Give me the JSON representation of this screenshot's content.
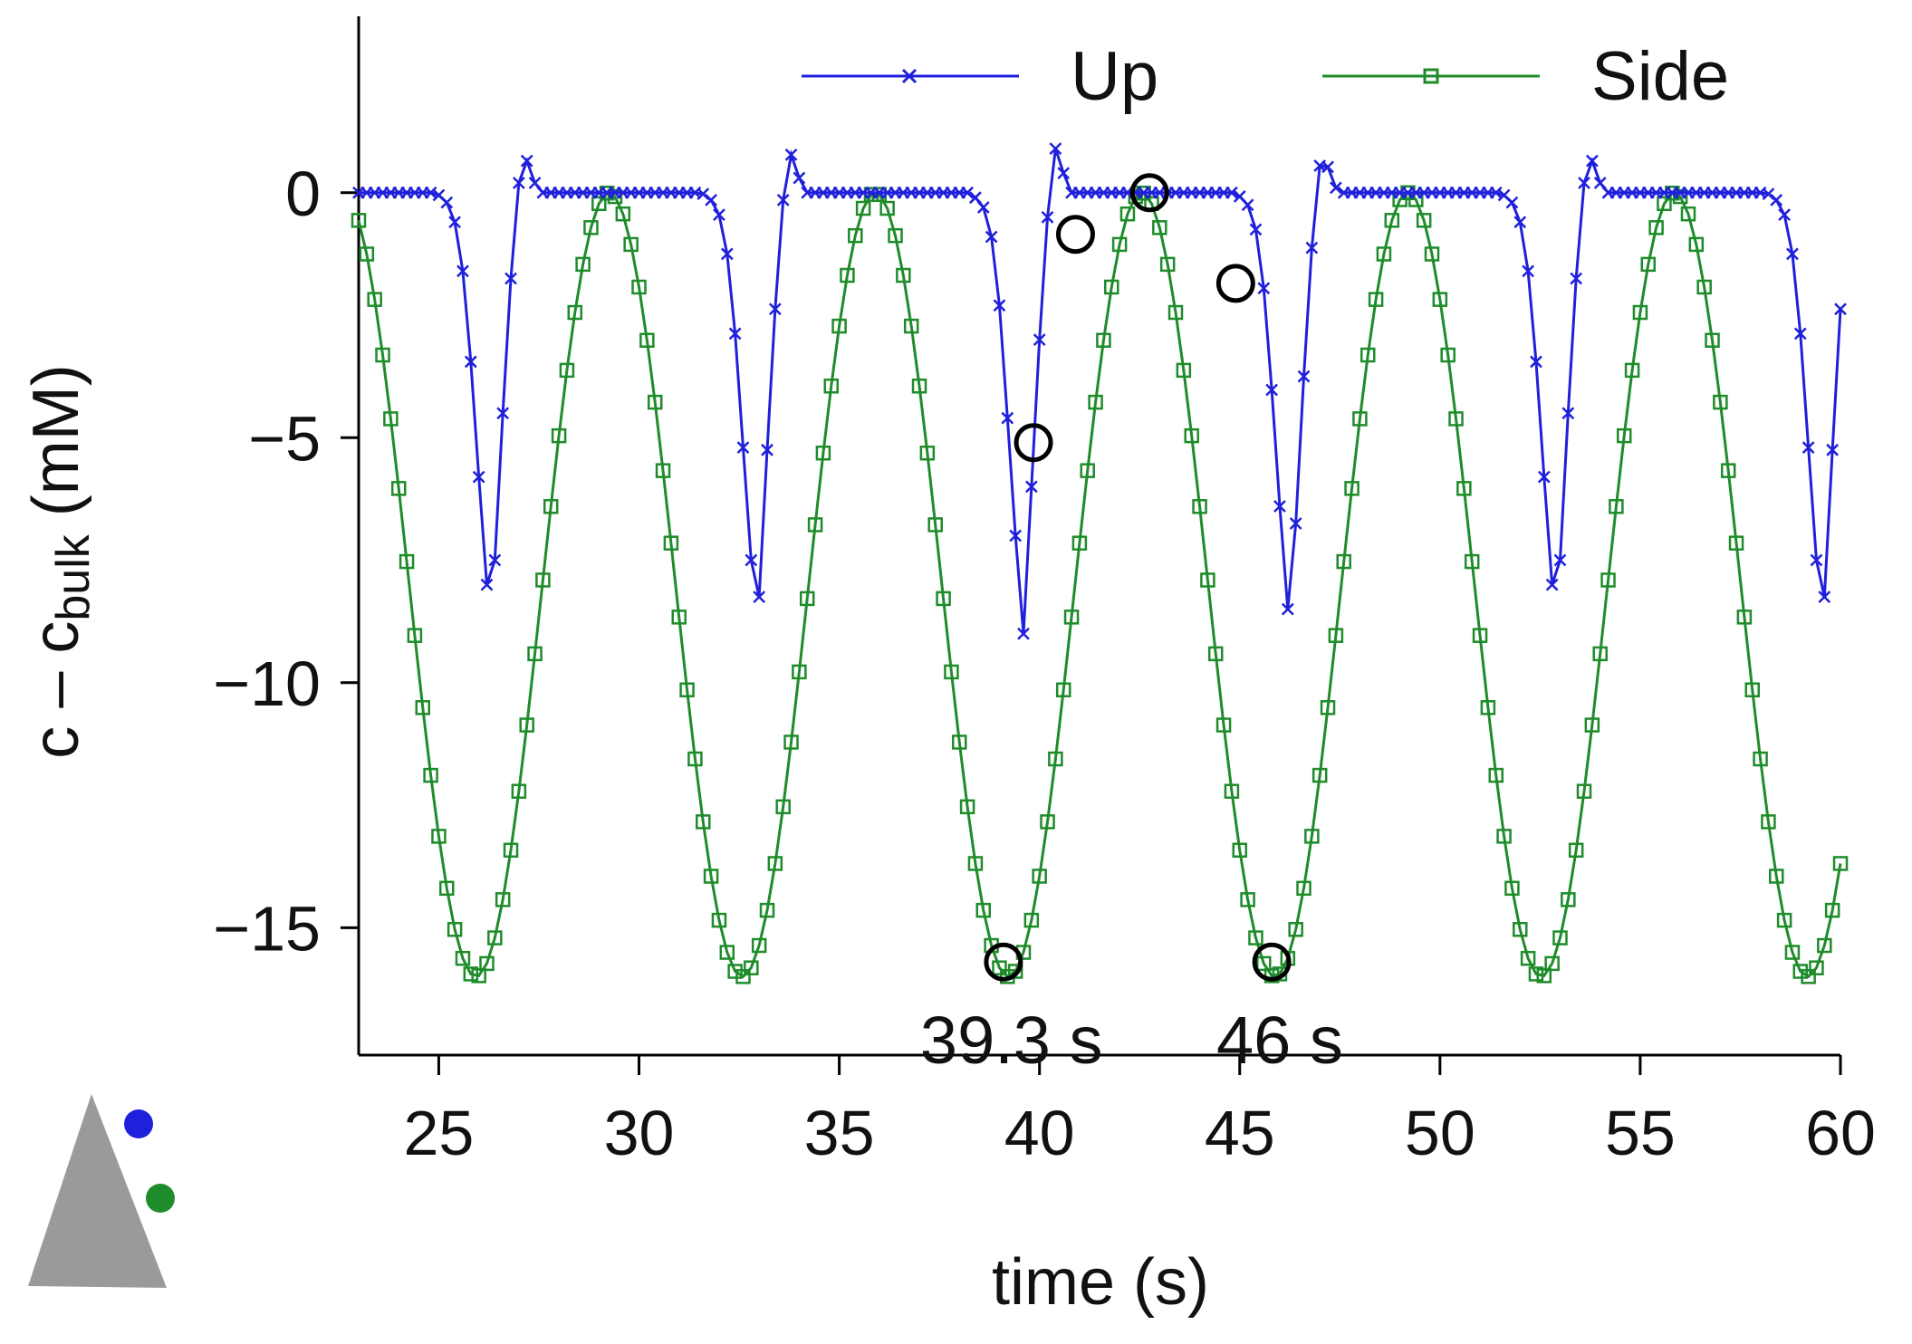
{
  "chart_data": {
    "type": "line",
    "title": "",
    "xlabel": "time (s)",
    "ylabel": {
      "main": "c – c",
      "subscript": "bulk",
      "unit": " (mM)"
    },
    "xlim": [
      23,
      60
    ],
    "ylim": [
      -17.6,
      3.6
    ],
    "xticks": [
      25,
      30,
      35,
      40,
      45,
      50,
      55,
      60
    ],
    "yticks": [
      0,
      -5,
      -10,
      -15
    ],
    "ytick_labels": [
      "0",
      "−5",
      "−10",
      "−15"
    ],
    "grid": false,
    "legend": {
      "position": "top",
      "entries": [
        "Up",
        "Side"
      ]
    },
    "period_s": 6.65,
    "sample_step_s": 0.2,
    "series": [
      {
        "name": "Up",
        "color": "#1f1fdc",
        "marker": "x",
        "baseline": 0,
        "pulse_template": {
          "offsets_s": [
            -1.2,
            -1.0,
            -0.8,
            -0.6,
            -0.4,
            -0.2,
            0.0,
            0.2,
            0.4,
            0.6,
            0.8,
            1.0,
            1.2,
            1.4
          ],
          "values": [
            0.0,
            -0.1,
            -0.3,
            -0.9,
            -2.3,
            -4.6,
            -7.0,
            -9.0,
            -6.0,
            -3.0,
            -0.5,
            0.9,
            0.4,
            0.0
          ]
        },
        "pulse_centers_s": [
          26.1,
          32.75,
          39.4,
          46.05,
          52.7,
          59.35
        ]
      },
      {
        "name": "Side",
        "color": "#1e8c2a",
        "marker": "square",
        "baseline": 0,
        "shape": "cosine_power",
        "exponent": 12,
        "depth": -16.0,
        "peak_times_s": [
          22.6,
          29.25,
          35.9,
          42.55,
          49.2,
          55.85,
          62.5
        ]
      }
    ],
    "highlighted_points": [
      {
        "time": 39.1,
        "value": -15.7
      },
      {
        "time": 39.85,
        "value": -5.1
      },
      {
        "time": 40.9,
        "value": -0.85
      },
      {
        "time": 42.75,
        "value": 0.0
      },
      {
        "time": 44.9,
        "value": -1.85
      },
      {
        "time": 45.8,
        "value": -15.7
      }
    ],
    "annotations": [
      {
        "text": "39.3 s",
        "time": 39.3,
        "value": -17.3
      },
      {
        "text": "46 s",
        "time": 46.0,
        "value": -17.3
      }
    ],
    "inset": {
      "description": "sensor layout",
      "triangle_color": "#9a9a9a",
      "dots": [
        {
          "series": "Up",
          "color": "#1f1fdc"
        },
        {
          "series": "Side",
          "color": "#1e8c2a"
        }
      ]
    }
  }
}
